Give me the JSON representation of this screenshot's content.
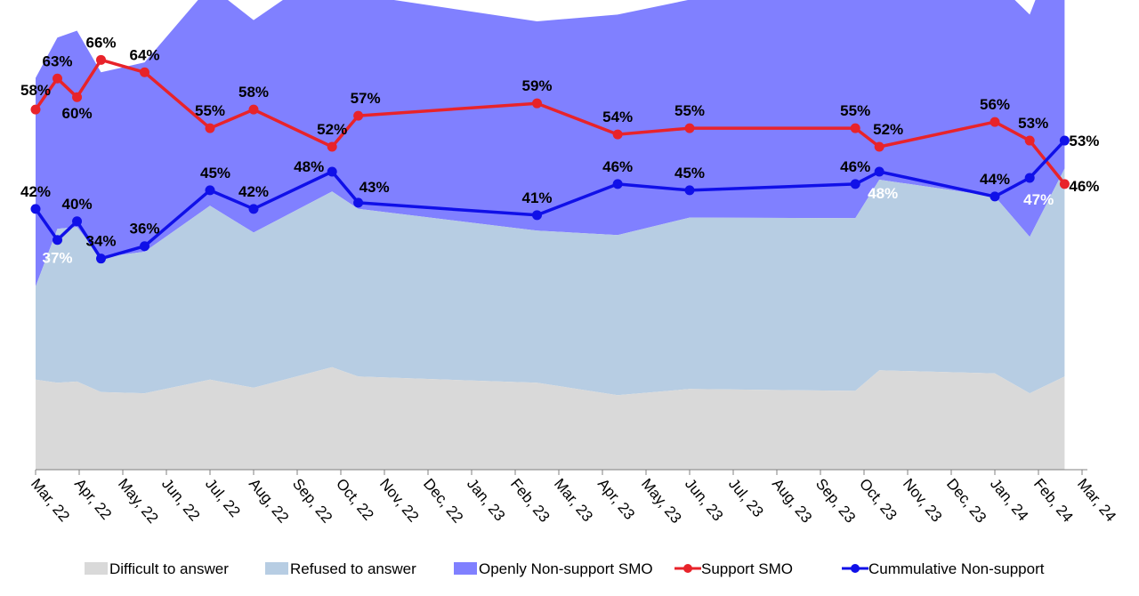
{
  "chart_data": {
    "type": "area",
    "x_categories": [
      "Mar, 22",
      "Apr, 22",
      "May, 22",
      "Jun, 22",
      "Jul, 22",
      "Aug, 22",
      "Sep, 22",
      "Oct, 22",
      "Nov, 22",
      "Dec, 22",
      "Jan, 23",
      "Feb, 23",
      "Mar, 23",
      "Apr, 23",
      "May, 23",
      "Jun, 23",
      "Jul, 23",
      "Aug, 23",
      "Sep, 23",
      "Oct, 23",
      "Nov, 23",
      "Dec, 23",
      "Jan, 24",
      "Feb, 24",
      "Mar, 24"
    ],
    "series": [
      {
        "name": "Difficult to answer",
        "kind": "area",
        "color": "#d9d9d9",
        "points": [
          [
            0,
            14.5
          ],
          [
            0.5,
            14
          ],
          [
            0.95,
            14.2
          ],
          [
            1.5,
            12.5
          ],
          [
            2.5,
            12.3
          ],
          [
            4,
            14.5
          ],
          [
            5,
            13.2
          ],
          [
            6.8,
            16.5
          ],
          [
            7.4,
            15
          ],
          [
            11.5,
            14
          ],
          [
            13.35,
            12
          ],
          [
            15,
            13
          ],
          [
            18.8,
            12.7
          ],
          [
            19.35,
            16
          ],
          [
            22,
            15.5
          ],
          [
            22.8,
            12.3
          ],
          [
            23.6,
            15
          ]
        ]
      },
      {
        "name": "Refused to answer",
        "kind": "area",
        "color": "#b7cde3",
        "points": [
          [
            0,
            15
          ],
          [
            0.5,
            24.8
          ],
          [
            0.95,
            24.9
          ],
          [
            1.5,
            21.7
          ],
          [
            2.5,
            22.8
          ],
          [
            4,
            28
          ],
          [
            5,
            25
          ],
          [
            6.8,
            28.3
          ],
          [
            7.4,
            27
          ],
          [
            11.5,
            24.5
          ],
          [
            13.35,
            25.8
          ],
          [
            15,
            27.6
          ],
          [
            18.8,
            27.8
          ],
          [
            19.35,
            30.7
          ],
          [
            22,
            28.5
          ],
          [
            22.8,
            25.2
          ],
          [
            23.6,
            33.5
          ]
        ]
      },
      {
        "name": "Openly Non-support SMO",
        "kind": "area",
        "color": "#8080ff",
        "points": [
          [
            0,
            33.6
          ],
          [
            0.5,
            30.8
          ],
          [
            0.95,
            31.6
          ],
          [
            1.5,
            29.8
          ],
          [
            2.5,
            30.5
          ],
          [
            4,
            35.4
          ],
          [
            5,
            34.2
          ],
          [
            6.8,
            36.3
          ],
          [
            7.4,
            34.5
          ],
          [
            11.5,
            33.7
          ],
          [
            13.35,
            35.5
          ],
          [
            15,
            35.1
          ],
          [
            18.8,
            35.5
          ],
          [
            19.35,
            36.2
          ],
          [
            22,
            34.8
          ],
          [
            22.8,
            35.8
          ],
          [
            23.6,
            39.3
          ]
        ]
      },
      {
        "name": "Support SMO",
        "kind": "line",
        "color": "#e8232a",
        "points": [
          [
            0,
            58
          ],
          [
            0.5,
            63
          ],
          [
            0.95,
            60
          ],
          [
            1.5,
            66
          ],
          [
            2.5,
            64
          ],
          [
            4,
            55
          ],
          [
            5,
            58
          ],
          [
            6.8,
            52
          ],
          [
            7.4,
            57
          ],
          [
            11.5,
            59
          ],
          [
            13.35,
            54
          ],
          [
            15,
            55
          ],
          [
            18.8,
            55
          ],
          [
            19.35,
            52
          ],
          [
            22,
            56
          ],
          [
            22.8,
            53
          ],
          [
            23.6,
            46
          ]
        ],
        "labels": [
          "58%",
          "63%",
          "60%",
          "66%",
          "64%",
          "55%",
          "58%",
          "52%",
          "57%",
          "59%",
          "54%",
          "55%",
          "55%",
          "52%",
          "56%",
          "53%",
          "46%"
        ]
      },
      {
        "name": "Cummulative Non-support",
        "kind": "line",
        "color": "#1010e8",
        "points": [
          [
            0,
            42
          ],
          [
            0.5,
            37
          ],
          [
            0.95,
            40
          ],
          [
            1.5,
            34
          ],
          [
            2.5,
            36
          ],
          [
            4,
            45
          ],
          [
            5,
            42
          ],
          [
            6.8,
            48
          ],
          [
            7.4,
            43
          ],
          [
            11.5,
            41
          ],
          [
            13.35,
            46
          ],
          [
            15,
            45
          ],
          [
            18.8,
            46
          ],
          [
            19.35,
            48
          ],
          [
            22,
            44
          ],
          [
            22.8,
            47
          ],
          [
            23.6,
            53
          ]
        ],
        "labels": [
          "42%",
          "37%",
          "40%",
          "34%",
          "36%",
          "45%",
          "42%",
          "48%",
          "43%",
          "41%",
          "46%",
          "45%",
          "46%",
          "48%",
          "44%",
          "47%",
          "53%"
        ]
      }
    ],
    "ylim": [
      0,
      100
    ],
    "grid": false,
    "legend_position": "bottom"
  }
}
